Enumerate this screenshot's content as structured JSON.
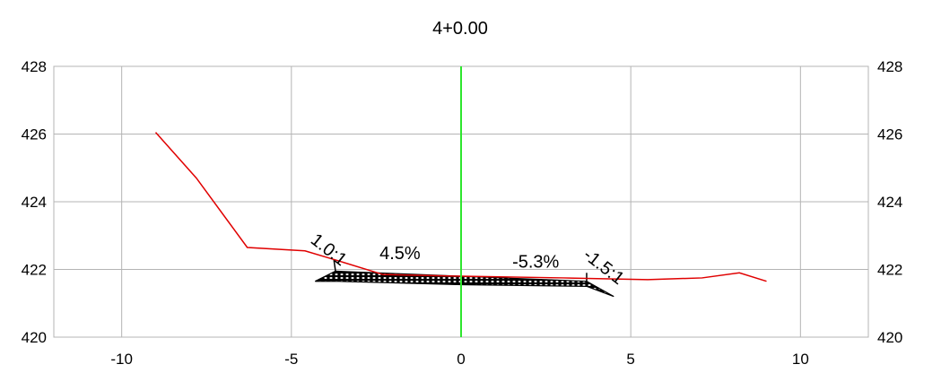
{
  "chart_data": {
    "type": "line",
    "title": "4+0.00",
    "xlim": [
      -12,
      12
    ],
    "ylim": [
      420,
      428
    ],
    "x_ticks": [
      -10,
      -5,
      0,
      5,
      10
    ],
    "y_ticks": [
      420,
      422,
      424,
      426,
      428
    ],
    "x_tick_labels": [
      "-10",
      "-5",
      "0",
      "5",
      "10"
    ],
    "y_tick_labels": [
      "420",
      "422",
      "424",
      "426",
      "428"
    ],
    "grid": true,
    "centerline_x": 0,
    "series": [
      {
        "role": "existing-ground",
        "color": "#e00000",
        "x": [
          -9.0,
          -7.8,
          -6.3,
          -4.6,
          -3.6,
          -2.3,
          0.0,
          3.0,
          5.5,
          7.1,
          8.2,
          9.0
        ],
        "y": [
          426.05,
          424.7,
          422.65,
          422.55,
          422.25,
          421.85,
          421.8,
          421.75,
          421.7,
          421.75,
          421.9,
          421.65
        ]
      },
      {
        "role": "design-section",
        "color": "#000000",
        "x": [
          -4.3,
          -3.7,
          0.0,
          3.7,
          4.5,
          3.7,
          0.0,
          -3.7,
          -4.3
        ],
        "y": [
          421.65,
          421.95,
          421.8,
          421.65,
          421.2,
          421.5,
          421.55,
          421.65,
          421.65
        ]
      }
    ],
    "annotations": [
      {
        "text": "1.0:1",
        "x": -4.0,
        "y": 422.45,
        "rotate": 38
      },
      {
        "text": "4.5%",
        "x": -1.8,
        "y": 422.3,
        "rotate": 0
      },
      {
        "text": "-5.3%",
        "x": 2.2,
        "y": 422.05,
        "rotate": 0
      },
      {
        "text": "-1.5:1",
        "x": 4.1,
        "y": 421.95,
        "rotate": 38
      }
    ],
    "colors": {
      "grid": "#b4b4b4",
      "centerline": "#2ee62e",
      "ground": "#e00000",
      "design": "#000000"
    }
  }
}
